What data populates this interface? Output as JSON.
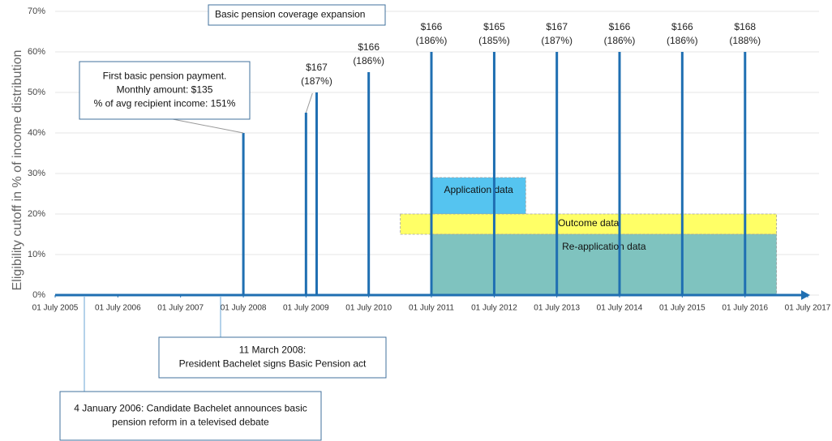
{
  "chart_data": {
    "type": "bar",
    "y_label": "Eligibility cutoff in % of income distribution",
    "xlim": [
      "2005-07-01",
      "2017-07-01"
    ],
    "xticks": [
      {
        "value": "2005-07-01",
        "label": "01 July 2005"
      },
      {
        "value": "2006-07-01",
        "label": "01 July 2006"
      },
      {
        "value": "2007-07-01",
        "label": "01 July 2007"
      },
      {
        "value": "2008-07-01",
        "label": "01 July 2008"
      },
      {
        "value": "2009-07-01",
        "label": "01 July 2009"
      },
      {
        "value": "2010-07-01",
        "label": "01 July 2010"
      },
      {
        "value": "2011-07-01",
        "label": "01 July 2011"
      },
      {
        "value": "2012-07-01",
        "label": "01 July 2012"
      },
      {
        "value": "2013-07-01",
        "label": "01 July 2013"
      },
      {
        "value": "2014-07-01",
        "label": "01 July 2014"
      },
      {
        "value": "2015-07-01",
        "label": "01 July 2015"
      },
      {
        "value": "2016-07-01",
        "label": "01 July 2016"
      },
      {
        "value": "2017-07-01",
        "label": "01 July 2017"
      }
    ],
    "ylim": [
      0,
      70
    ],
    "yticks": [
      {
        "value": 0,
        "label": "0%"
      },
      {
        "value": 10,
        "label": "10%"
      },
      {
        "value": 20,
        "label": "20%"
      },
      {
        "value": 30,
        "label": "30%"
      },
      {
        "value": 40,
        "label": "40%"
      },
      {
        "value": 50,
        "label": "50%"
      },
      {
        "value": 60,
        "label": "60%"
      },
      {
        "value": 70,
        "label": "70%"
      }
    ],
    "grid": true,
    "color": "#1f6fb2",
    "x": [
      "2008-07-01",
      "2009-07-01",
      "2009-09-01",
      "2010-07-01",
      "2011-07-01",
      "2012-07-01",
      "2013-07-01",
      "2014-07-01",
      "2015-07-01",
      "2016-07-01"
    ],
    "values": [
      40,
      45,
      50,
      55,
      60,
      60,
      60,
      60,
      60,
      60
    ],
    "bar_labels": [
      null,
      null,
      [
        "$167",
        "(187%)"
      ],
      [
        "$166",
        "(186%)"
      ],
      [
        "$166",
        "(186%)"
      ],
      [
        "$165",
        "(185%)"
      ],
      [
        "$167",
        "(187%)"
      ],
      [
        "$166",
        "(186%)"
      ],
      [
        "$166",
        "(186%)"
      ],
      [
        "$168",
        "(188%)"
      ]
    ],
    "regions": [
      {
        "label": "Application data",
        "x": [
          "2011-07-01",
          "2013-01-01"
        ],
        "y": [
          20,
          29
        ],
        "color": "#55c4f0"
      },
      {
        "label": "Outcome data",
        "x": [
          "2011-01-01",
          "2017-01-01"
        ],
        "y": [
          15,
          20
        ],
        "color": "#ffff66"
      },
      {
        "label": "Re-application data",
        "x": [
          "2011-07-01",
          "2017-01-01"
        ],
        "y": [
          0,
          15
        ],
        "color": "#7fc3bf"
      }
    ],
    "annotations": [
      {
        "text": [
          "Basic pension coverage expansion"
        ]
      },
      {
        "text": [
          "First basic pension payment.",
          "Monthly amount: $135",
          "% of avg recipient income: 151%"
        ]
      },
      {
        "text": [
          "11 March 2008:",
          "President Bachelet signs Basic Pension act"
        ]
      },
      {
        "text": [
          "4 January 2006: Candidate Bachelet announces basic",
          "pension reform in a televised debate"
        ]
      }
    ]
  }
}
